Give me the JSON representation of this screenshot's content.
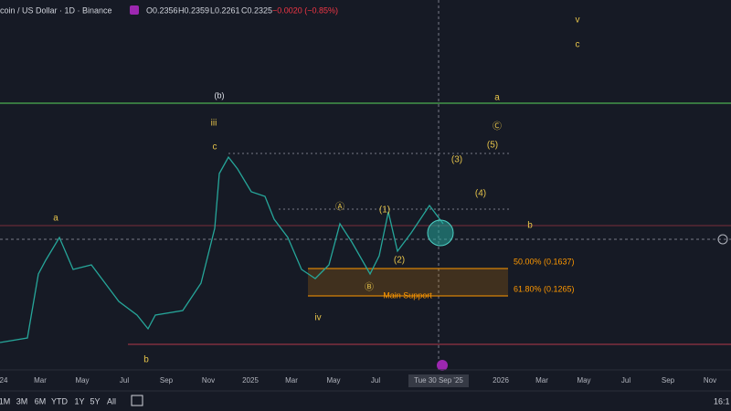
{
  "header": {
    "title": "coin / US Dollar · 1D · Binance",
    "ohlc": [
      "O0.2356",
      "H0.2359",
      "L0.2261",
      "C0.2325"
    ],
    "change": "−0.0020 (−0.85%)"
  },
  "waves": [
    "v",
    "c",
    "(b)",
    "a",
    "iii",
    "Ⓒ",
    "(5)",
    "c",
    "(3)",
    "(4)",
    "Ⓐ",
    "(1)",
    "a",
    "b",
    "(2)",
    "Ⓑ",
    "iv",
    "b"
  ],
  "fib": [
    "50.00% (0.1637)",
    "61.80% (0.1265)",
    "Main Support"
  ],
  "time_axis": [
    "24",
    "Mar",
    "May",
    "Jul",
    "Sep",
    "Nov",
    "2025",
    "Mar",
    "May",
    "Jul",
    "Tue 30 Sep '25",
    "2026",
    "Mar",
    "May",
    "Jul",
    "Sep",
    "Nov"
  ],
  "toolbar": {
    "ranges": [
      "1M",
      "3M",
      "6M",
      "YTD",
      "1Y",
      "5Y",
      "All"
    ],
    "clock": "16:1"
  }
}
